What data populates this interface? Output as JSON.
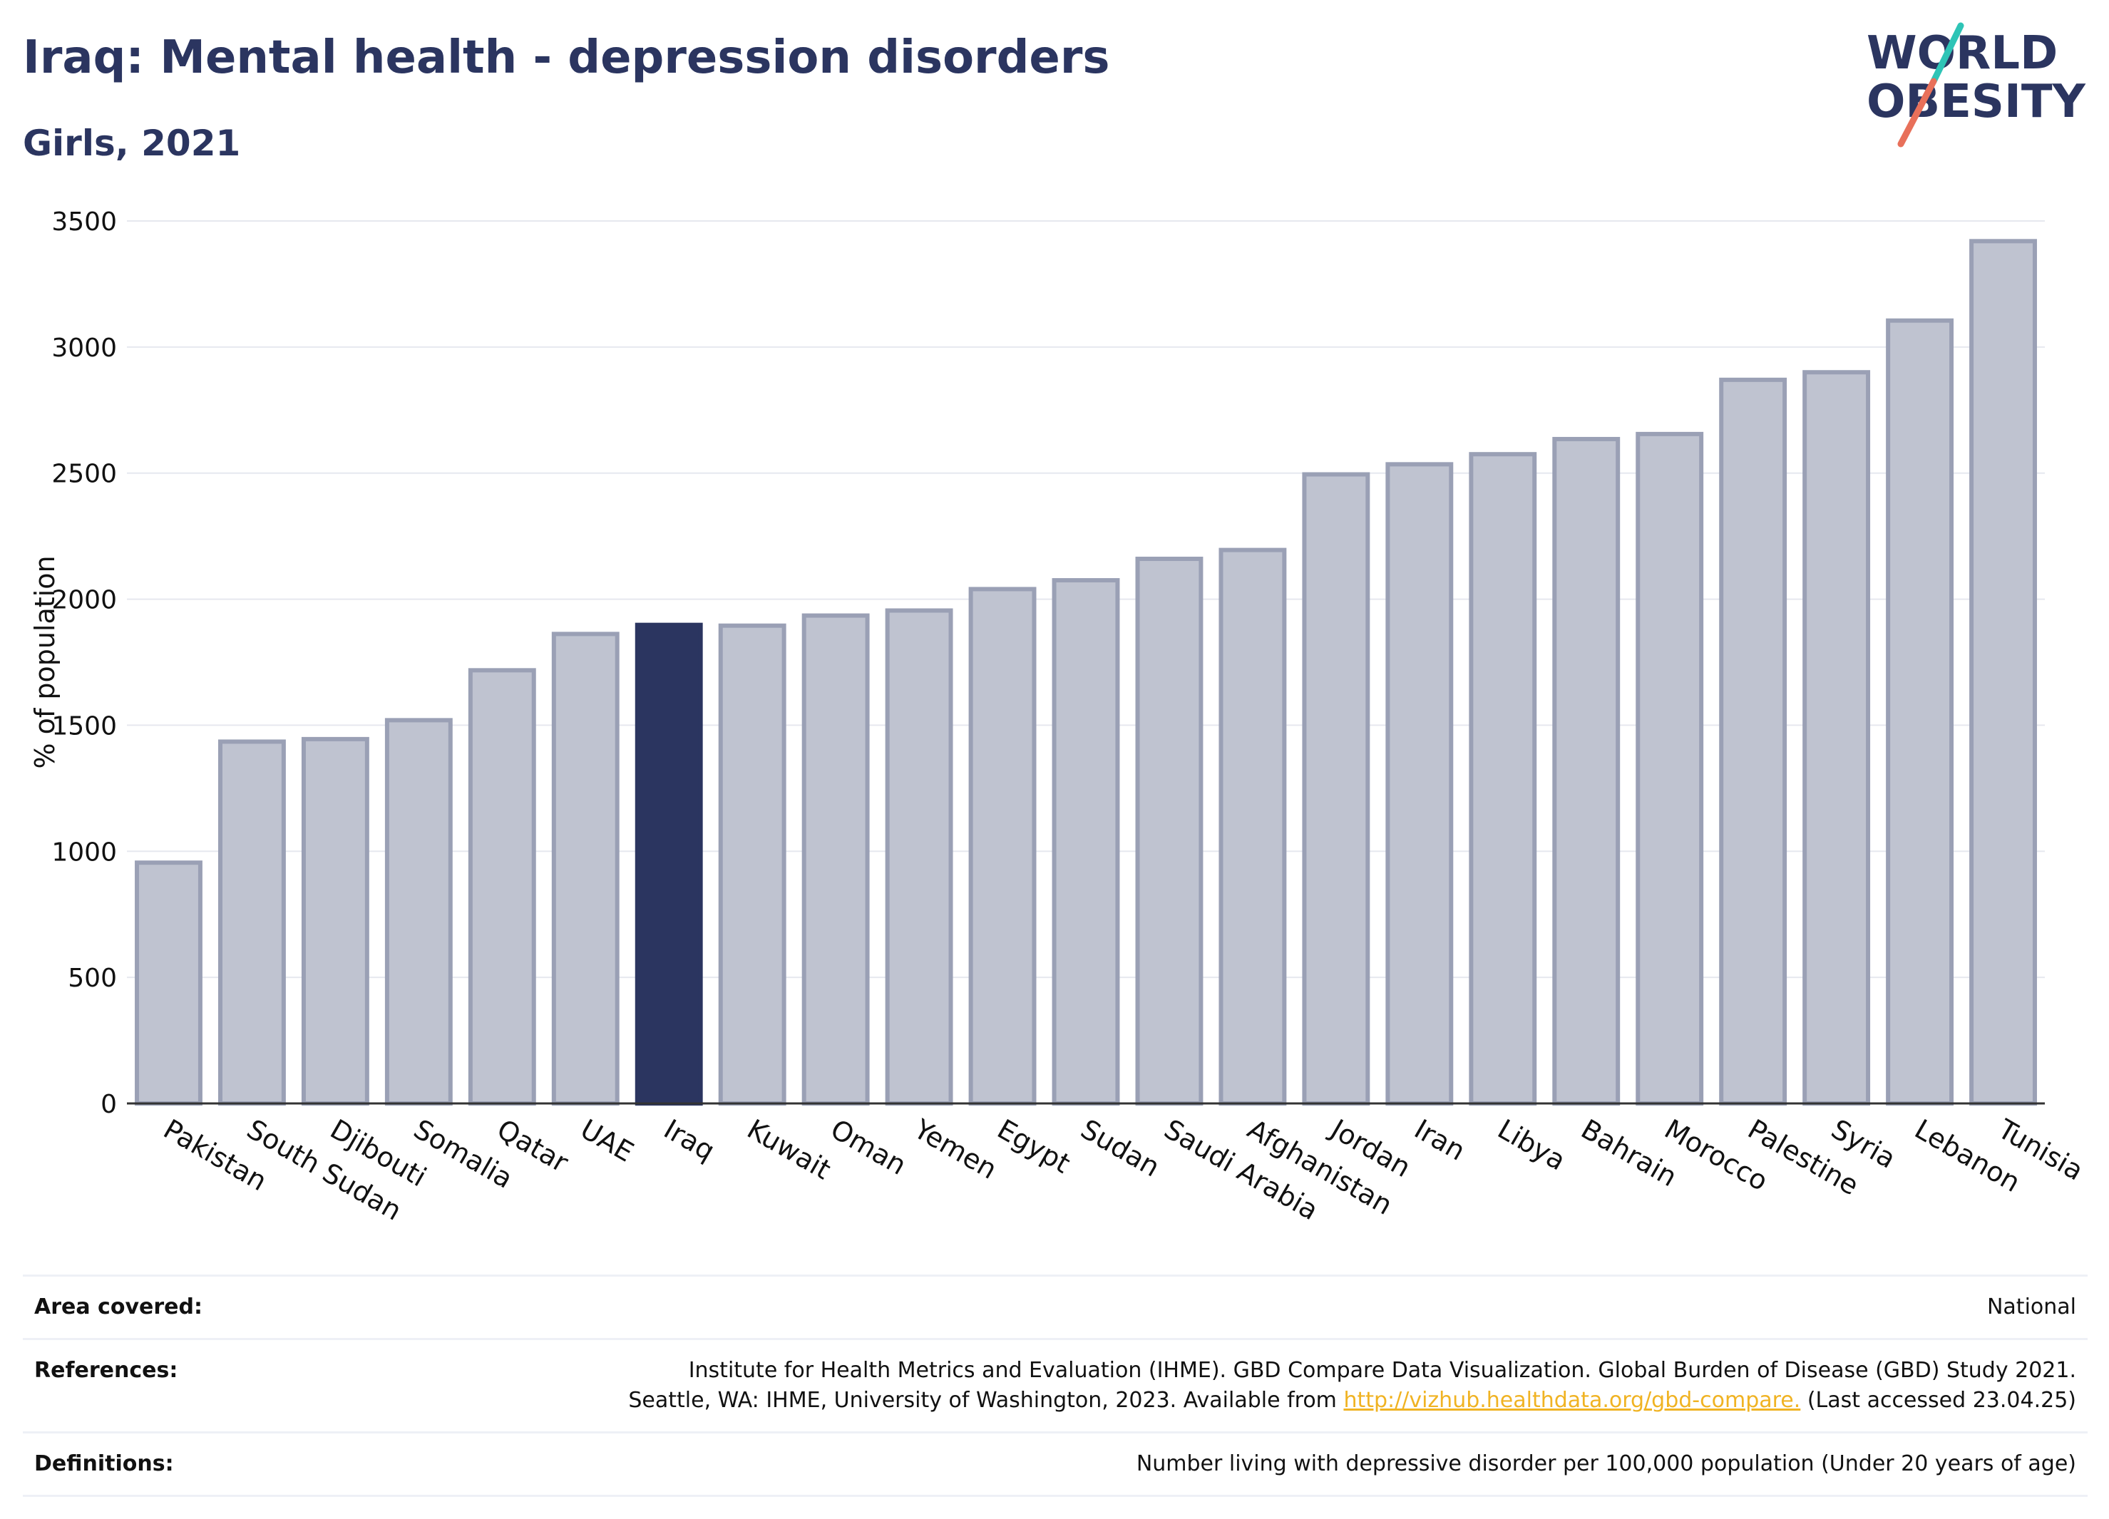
{
  "header": {
    "title": "Iraq: Mental health - depression disorders",
    "subtitle": "Girls, 2021"
  },
  "logo": {
    "line1": "WORLD",
    "line2": "OBESITY"
  },
  "colors": {
    "bar": "#bfc3d0",
    "bar_stroke": "#9aa0b5",
    "highlight": "#2b3560",
    "grid": "#e6e8ef",
    "text": "#2b3560",
    "link": "#f0b323"
  },
  "chart_data": {
    "type": "bar",
    "title": "Iraq: Mental health - depression disorders",
    "subtitle": "Girls, 2021",
    "xlabel": "",
    "ylabel": "% of population",
    "ylim": [
      0,
      3500
    ],
    "yticks": [
      0,
      500,
      1000,
      1500,
      2000,
      2500,
      3000,
      3500
    ],
    "grid": true,
    "highlight": "Iraq",
    "categories": [
      "Pakistan",
      "South Sudan",
      "Djibouti",
      "Somalia",
      "Qatar",
      "UAE",
      "Iraq",
      "Kuwait",
      "Oman",
      "Yemen",
      "Egypt",
      "Sudan",
      "Saudi Arabia",
      "Afghanistan",
      "Jordan",
      "Iran",
      "Libya",
      "Bahrain",
      "Morocco",
      "Palestine",
      "Syria",
      "Lebanon",
      "Tunisia"
    ],
    "values": [
      955,
      1435,
      1445,
      1520,
      1718,
      1862,
      1898,
      1895,
      1935,
      1955,
      2040,
      2075,
      2160,
      2195,
      2495,
      2535,
      2575,
      2635,
      2655,
      2870,
      2900,
      3105,
      3420
    ]
  },
  "footer": {
    "area_label": "Area covered:",
    "area_value": "National",
    "references_label": "References:",
    "references_line1": "Institute for Health Metrics and Evaluation (IHME). GBD Compare Data Visualization. Global Burden of Disease (GBD) Study 2021.",
    "references_line2_pre": "Seattle, WA: IHME, University of Washington, 2023. Available from ",
    "references_link": "http://vizhub.healthdata.org/gbd-compare.",
    "references_line2_post": " (Last accessed 23.04.25)",
    "definitions_label": "Definitions:",
    "definitions_value": "Number living with depressive disorder per 100,000 population (Under 20 years of age)"
  }
}
